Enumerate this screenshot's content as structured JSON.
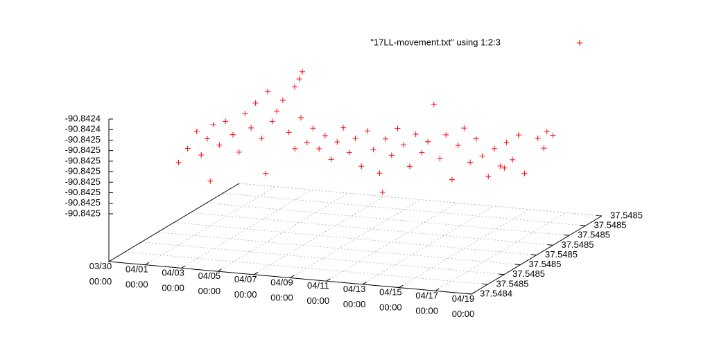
{
  "chart_data": {
    "type": "scatter3d",
    "grid": true,
    "legend": "top-right",
    "xlim": [
      "03/30 00:00",
      "04/19 00:00"
    ],
    "xticks": [
      "03/30 00:00",
      "04/01 00:00",
      "04/03 00:00",
      "04/05 00:00",
      "04/07 00:00",
      "04/09 00:00",
      "04/11 00:00",
      "04/13 00:00",
      "04/15 00:00",
      "04/17 00:00",
      "04/19 00:00"
    ],
    "ylim": [
      37.54844,
      37.54852
    ],
    "yticks": [
      {
        "value": 37.54844,
        "label": "37.5484"
      },
      {
        "value": 37.54845,
        "label": "37.5485"
      },
      {
        "value": 37.54846,
        "label": "37.5485"
      },
      {
        "value": 37.54847,
        "label": "37.5485"
      },
      {
        "value": 37.54848,
        "label": "37.5485"
      },
      {
        "value": 37.54849,
        "label": "37.5485"
      },
      {
        "value": 37.5485,
        "label": "37.5485"
      },
      {
        "value": 37.54851,
        "label": "37.5485"
      },
      {
        "value": 37.54852,
        "label": "37.5485"
      }
    ],
    "zlim": [
      -90.84252,
      -90.84243
    ],
    "zticks": [
      {
        "value": -90.84252,
        "label": "-90.8425"
      },
      {
        "value": -90.84251,
        "label": "-90.8425"
      },
      {
        "value": -90.8425,
        "label": "-90.8425"
      },
      {
        "value": -90.84249,
        "label": "-90.8425"
      },
      {
        "value": -90.84248,
        "label": "-90.8425"
      },
      {
        "value": -90.84247,
        "label": "-90.8425"
      },
      {
        "value": -90.84246,
        "label": "-90.8425"
      },
      {
        "value": -90.84245,
        "label": "-90.8425"
      },
      {
        "value": -90.84244,
        "label": "-90.8424"
      },
      {
        "value": -90.84243,
        "label": "-90.8424"
      }
    ],
    "series": [
      {
        "name": "\"17LL-movement.txt\" using 1:2:3",
        "color": "#ff0000",
        "x": [
          "03/30 06:00",
          "03/30 18:00",
          "03/31 06:00",
          "03/31 12:00",
          "03/31 20:00",
          "04/01 04:00",
          "04/01 12:00",
          "04/01 20:00",
          "04/02 06:00",
          "04/02 14:00",
          "04/02 22:00",
          "04/03 06:00",
          "04/03 12:00",
          "04/03 20:00",
          "04/04 04:00",
          "04/04 10:00",
          "04/03 22:00",
          "04/03 18:00",
          "04/03 12:00",
          "04/04 16:00",
          "04/05 00:00",
          "04/05 08:00",
          "04/05 16:00",
          "04/06 00:00",
          "04/06 08:00",
          "04/06 16:00",
          "04/07 00:00",
          "04/07 08:00",
          "04/07 16:00",
          "04/08 00:00",
          "04/08 08:00",
          "04/08 16:00",
          "04/09 00:00",
          "04/09 08:00",
          "04/09 16:00",
          "04/10 00:00",
          "04/10 08:00",
          "04/10 16:00",
          "04/11 00:00",
          "04/11 08:00",
          "04/11 16:00",
          "04/12 00:00",
          "04/12 08:00",
          "04/12 16:00",
          "04/13 00:00",
          "04/13 08:00",
          "04/13 16:00",
          "04/14 00:00",
          "04/14 08:00",
          "04/14 16:00",
          "04/15 00:00",
          "04/15 08:00",
          "04/15 16:00",
          "04/16 00:00",
          "04/16 08:00",
          "04/16 16:00",
          "04/17 00:00",
          "04/17 08:00",
          "04/17 16:00",
          "04/18 00:00",
          "04/18 08:00",
          "04/18 16:00",
          "04/18 12:00",
          "04/18 04:00",
          "04/19 00:00",
          "04/05 12:00",
          "04/01 00:00",
          "04/10 12:00",
          "04/16 12:00"
        ],
        "y": [
          37.54848,
          37.54848,
          37.54848,
          37.54848,
          37.54848,
          37.54848,
          37.54848,
          37.54848,
          37.54848,
          37.54848,
          37.54848,
          37.54848,
          37.54848,
          37.54848,
          37.54848,
          37.54848,
          37.548504,
          37.548504,
          37.548504,
          37.54848,
          37.54848,
          37.54848,
          37.54848,
          37.54848,
          37.54848,
          37.54848,
          37.54848,
          37.54848,
          37.54848,
          37.54848,
          37.54848,
          37.54848,
          37.54848,
          37.54848,
          37.54848,
          37.54848,
          37.54848,
          37.54848,
          37.54848,
          37.54848,
          37.54848,
          37.54848,
          37.54848,
          37.54848,
          37.54848,
          37.54848,
          37.54848,
          37.54848,
          37.54848,
          37.54848,
          37.54848,
          37.54848,
          37.54848,
          37.54848,
          37.54848,
          37.54848,
          37.54848,
          37.54848,
          37.54848,
          37.54848,
          37.54848,
          37.54849,
          37.54849,
          37.54849,
          37.54849,
          37.548464,
          37.54848,
          37.54848,
          37.548488
        ],
        "z": [
          -90.842508,
          -90.842494,
          -90.842477,
          -90.842499,
          -90.842483,
          -90.842469,
          -90.842488,
          -90.842465,
          -90.842477,
          -90.842493,
          -90.842456,
          -90.842469,
          -90.842445,
          -90.842478,
          -90.842433,
          -90.842461,
          -90.842437,
          -90.842444,
          -90.842452,
          -90.842451,
          -90.84244,
          -90.84247,
          -90.842485,
          -90.842455,
          -90.842478,
          -90.842464,
          -90.842483,
          -90.84247,
          -90.842492,
          -90.842475,
          -90.842461,
          -90.842484,
          -90.84247,
          -90.842496,
          -90.842462,
          -90.842479,
          -90.842501,
          -90.842468,
          -90.842483,
          -90.842457,
          -90.842472,
          -90.842492,
          -90.842461,
          -90.842478,
          -90.842467,
          -90.842431,
          -90.842482,
          -90.842459,
          -90.842501,
          -90.842468,
          -90.842451,
          -90.842483,
          -90.84246,
          -90.842476,
          -90.842495,
          -90.842468,
          -90.842484,
          -90.842461,
          -90.842477,
          -90.842453,
          -90.842489,
          -90.842458,
          -90.842474,
          -90.842465,
          -90.842461,
          -90.842494,
          -90.842523,
          -90.842519,
          -90.842494
        ]
      }
    ]
  }
}
